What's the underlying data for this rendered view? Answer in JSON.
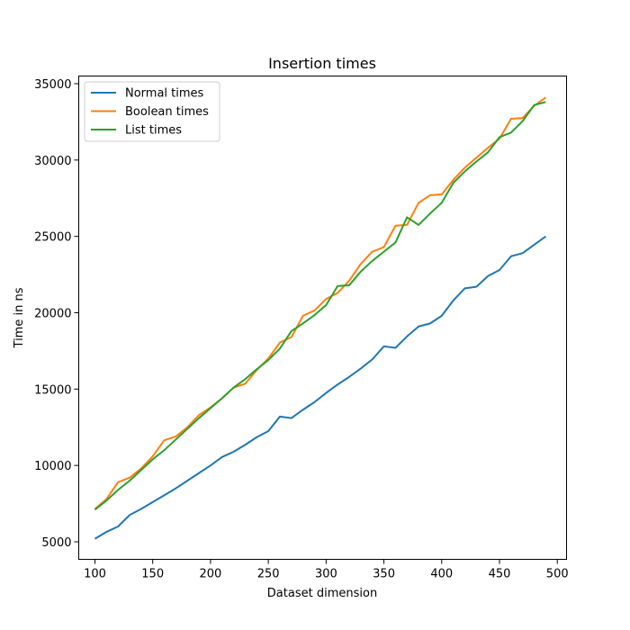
{
  "chart_data": {
    "type": "line",
    "title": "Insertion times",
    "xlabel": "Dataset dimension",
    "ylabel": "Time in ns",
    "xlim": [
      86,
      508
    ],
    "ylim": [
      3850,
      35500
    ],
    "x_ticks": [
      100,
      150,
      200,
      250,
      300,
      350,
      400,
      450,
      500
    ],
    "y_ticks": [
      5000,
      10000,
      15000,
      20000,
      25000,
      30000,
      35000
    ],
    "grid": false,
    "legend_position": "upper left",
    "x": [
      100,
      110,
      120,
      130,
      140,
      150,
      160,
      170,
      180,
      190,
      200,
      210,
      220,
      230,
      240,
      250,
      260,
      270,
      280,
      290,
      300,
      310,
      320,
      330,
      340,
      350,
      360,
      370,
      380,
      390,
      400,
      410,
      420,
      430,
      440,
      450,
      460,
      470,
      480,
      490
    ],
    "series": [
      {
        "name": "Normal times",
        "color": "#1f77b4",
        "values": [
          5200,
          5650,
          6000,
          6750,
          7150,
          7600,
          8050,
          8500,
          9000,
          9500,
          10000,
          10550,
          10900,
          11350,
          11850,
          12250,
          13200,
          13100,
          13650,
          14150,
          14750,
          15300,
          15800,
          16350,
          16950,
          17800,
          17700,
          18450,
          19100,
          19300,
          19800,
          20800,
          21600,
          21700,
          22400,
          22800,
          23700,
          23900,
          24450,
          25000
        ]
      },
      {
        "name": "Boolean times",
        "color": "#ff7f0e",
        "values": [
          7150,
          7800,
          8900,
          9200,
          9800,
          10600,
          11650,
          11900,
          12500,
          13300,
          13800,
          14400,
          15100,
          15350,
          16250,
          17000,
          18050,
          18400,
          19800,
          20150,
          20900,
          21300,
          22100,
          23200,
          24000,
          24300,
          25700,
          25750,
          27200,
          27700,
          27750,
          28700,
          29500,
          30150,
          30800,
          31400,
          32700,
          32750,
          33550,
          34100
        ]
      },
      {
        "name": "List times",
        "color": "#2ca02c",
        "values": [
          7100,
          7700,
          8400,
          9000,
          9700,
          10400,
          11000,
          11700,
          12400,
          13100,
          13750,
          14400,
          15100,
          15650,
          16300,
          16900,
          17650,
          18800,
          19300,
          19850,
          20500,
          21750,
          21800,
          22700,
          23400,
          24000,
          24600,
          26250,
          25750,
          26500,
          27200,
          28500,
          29250,
          29900,
          30500,
          31500,
          31800,
          32550,
          33600,
          33800
        ]
      }
    ]
  }
}
